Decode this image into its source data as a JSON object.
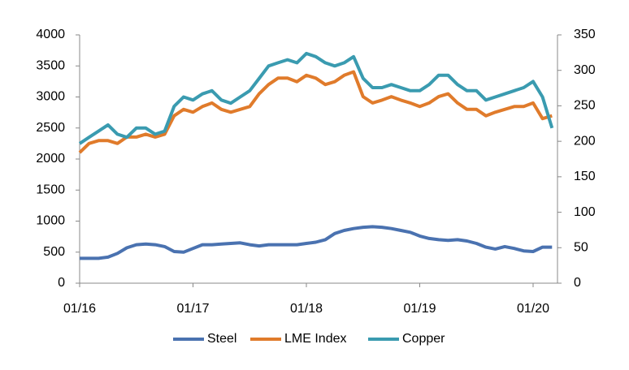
{
  "chart_data": {
    "type": "line",
    "x": [
      "01/16",
      "02/16",
      "03/16",
      "04/16",
      "05/16",
      "06/16",
      "07/16",
      "08/16",
      "09/16",
      "10/16",
      "11/16",
      "12/16",
      "01/17",
      "02/17",
      "03/17",
      "04/17",
      "05/17",
      "06/17",
      "07/17",
      "08/17",
      "09/17",
      "10/17",
      "11/17",
      "12/17",
      "01/18",
      "02/18",
      "03/18",
      "04/18",
      "05/18",
      "06/18",
      "07/18",
      "08/18",
      "09/18",
      "10/18",
      "11/18",
      "12/18",
      "01/19",
      "02/19",
      "03/19",
      "04/19",
      "05/19",
      "06/19",
      "07/19",
      "08/19",
      "09/19",
      "10/19",
      "11/19",
      "12/19",
      "01/20",
      "02/20",
      "03/20"
    ],
    "xticks": [
      "01/16",
      "01/17",
      "01/18",
      "01/19",
      "01/20"
    ],
    "ylim": [
      0,
      4000
    ],
    "yticks": [
      0,
      500,
      1000,
      1500,
      2000,
      2500,
      3000,
      3500,
      4000
    ],
    "y2lim": [
      0,
      350
    ],
    "y2ticks": [
      0,
      50,
      100,
      150,
      200,
      250,
      300,
      350
    ],
    "legend": "bottom",
    "series": [
      {
        "name": "Steel",
        "color": "#4a72b0",
        "values": [
          400,
          400,
          400,
          420,
          480,
          570,
          620,
          630,
          620,
          590,
          510,
          500,
          560,
          620,
          620,
          630,
          640,
          650,
          620,
          600,
          620,
          620,
          620,
          620,
          640,
          660,
          700,
          800,
          850,
          880,
          900,
          910,
          900,
          880,
          850,
          820,
          760,
          720,
          700,
          690,
          700,
          680,
          640,
          580,
          550,
          590,
          560,
          520,
          510,
          580,
          580
        ]
      },
      {
        "name": "LME Index",
        "color": "#e07b2b",
        "axis": "y2",
        "values": [
          184,
          197,
          201,
          201,
          197,
          206,
          206,
          210,
          206,
          210,
          236,
          245,
          241,
          249,
          254,
          245,
          241,
          245,
          249,
          267,
          280,
          289,
          289,
          284,
          293,
          289,
          280,
          284,
          293,
          298,
          263,
          254,
          258,
          263,
          258,
          254,
          249,
          254,
          263,
          267,
          254,
          245,
          245,
          236,
          241,
          245,
          249,
          249,
          254,
          232,
          236
        ]
      },
      {
        "name": "Copper",
        "color": "#3a9bb0",
        "values": [
          2250,
          2350,
          2450,
          2550,
          2400,
          2350,
          2500,
          2500,
          2400,
          2450,
          2850,
          3000,
          2950,
          3050,
          3100,
          2950,
          2900,
          3000,
          3100,
          3300,
          3500,
          3550,
          3600,
          3550,
          3700,
          3650,
          3550,
          3500,
          3550,
          3650,
          3300,
          3150,
          3150,
          3200,
          3150,
          3100,
          3100,
          3200,
          3350,
          3350,
          3200,
          3100,
          3100,
          2950,
          3000,
          3050,
          3100,
          3150,
          3250,
          3000,
          2500
        ]
      }
    ]
  }
}
